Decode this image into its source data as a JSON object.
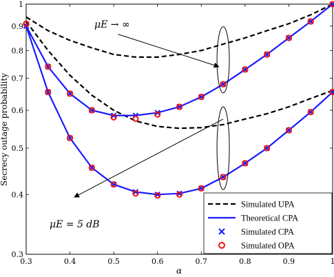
{
  "chart_data": {
    "type": "line",
    "title": "",
    "xlabel": "α",
    "ylabel": "Secrecy outage probability",
    "xlim": [
      0.3,
      1.0
    ],
    "ylim": [
      0.3,
      1.0
    ],
    "yscale": "log",
    "grid": false,
    "legend_position": "bottom-right",
    "x_ticks": [
      "0.3",
      "0.4",
      "0.5",
      "0.6",
      "0.7",
      "0.8",
      "0.9",
      "1"
    ],
    "y_ticks": [
      "0.3",
      "0.4",
      "0.5",
      "0.6",
      "0.7",
      "0.8",
      "0.9",
      "1"
    ],
    "x": [
      0.3,
      0.35,
      0.4,
      0.45,
      0.5,
      0.55,
      0.6,
      0.65,
      0.7,
      0.75,
      0.8,
      0.85,
      0.9,
      0.95,
      1.0
    ],
    "series": [
      {
        "name": "Simulated UPA",
        "style": "dashed",
        "color": "#000000",
        "groups": [
          {
            "label": "μE → ∞",
            "values": [
              0.94,
              0.88,
              0.84,
              0.81,
              0.785,
              0.775,
              0.775,
              0.785,
              0.8,
              0.825,
              0.85,
              0.88,
              0.91,
              0.95,
              1.0
            ]
          },
          {
            "label": "μE = 5 dB",
            "values": [
              0.92,
              0.8,
              0.71,
              0.645,
              0.6,
              0.57,
              0.555,
              0.55,
              0.552,
              0.56,
              0.575,
              0.59,
              0.61,
              0.635,
              0.66
            ]
          }
        ]
      },
      {
        "name": "Theoretical CPA",
        "style": "solid",
        "color": "#1a1aff",
        "groups": [
          {
            "label": "μE → ∞",
            "values": [
              0.9,
              0.74,
              0.65,
              0.6,
              0.585,
              0.585,
              0.593,
              0.61,
              0.64,
              0.68,
              0.73,
              0.785,
              0.85,
              0.92,
              1.0
            ]
          },
          {
            "label": "μE = 5 dB",
            "values": [
              0.9,
              0.655,
              0.525,
              0.455,
              0.42,
              0.405,
              0.4,
              0.402,
              0.412,
              0.435,
              0.465,
              0.5,
              0.545,
              0.595,
              0.655
            ]
          }
        ]
      },
      {
        "name": "Simulated CPA",
        "marker": "x",
        "color": "#1a1aff",
        "groups": [
          {
            "label": "μE → ∞",
            "values": [
              0.9,
              0.74,
              0.65,
              0.6,
              0.585,
              0.585,
              0.593,
              0.61,
              0.64,
              0.68,
              0.73,
              0.785,
              0.85,
              0.92,
              1.0
            ]
          },
          {
            "label": "μE = 5 dB",
            "values": [
              0.9,
              0.655,
              0.525,
              0.455,
              0.42,
              0.405,
              0.4,
              0.402,
              0.412,
              0.435,
              0.465,
              0.5,
              0.545,
              0.595,
              0.655
            ]
          }
        ]
      },
      {
        "name": "Simulated OPA",
        "marker": "o",
        "color": "#ee1111",
        "groups": [
          {
            "label": "μE → ∞",
            "values": [
              0.91,
              0.74,
              0.65,
              0.6,
              0.58,
              0.576,
              0.588,
              0.61,
              0.64,
              0.68,
              0.73,
              0.785,
              0.85,
              0.92,
              1.0
            ]
          },
          {
            "label": "μE = 5 dB",
            "values": [
              0.91,
              0.655,
              0.525,
              0.455,
              0.42,
              0.402,
              0.398,
              0.4,
              0.412,
              0.435,
              0.465,
              0.5,
              0.545,
              0.595,
              0.655
            ]
          }
        ]
      }
    ],
    "annotations": [
      {
        "text": "μE → ∞",
        "points_to": "upper curve group"
      },
      {
        "text": "μE = 5 dB",
        "points_to": "lower curve group"
      }
    ]
  }
}
